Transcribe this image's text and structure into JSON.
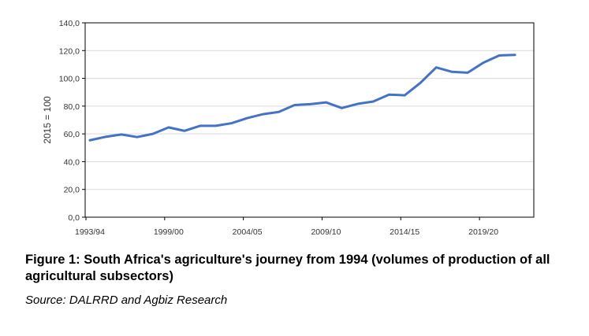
{
  "chart_data": {
    "type": "line",
    "title": "Figure 1: South Africa's agriculture's journey from 1994 (volumes of production of all agricultural subsectors)",
    "source": "Source: DALRRD and Agbiz Research",
    "xlabel": "",
    "ylabel": "2015 = 100",
    "ylim": [
      0,
      140
    ],
    "yticks": [
      "0,0",
      "20,0",
      "40,0",
      "60,0",
      "80,0",
      "100,0",
      "120,0",
      "140,0"
    ],
    "x_tick_labels": [
      "1993/94",
      "1999/00",
      "2004/05",
      "2009/10",
      "2014/15",
      "2019/20"
    ],
    "x_tick_every": 5,
    "grid": true,
    "color": "#4472C4",
    "series": [
      {
        "name": "Volume of production",
        "values": [
          55.4,
          57.9,
          59.6,
          57.7,
          60.0,
          64.7,
          62.2,
          65.8,
          65.8,
          67.7,
          71.4,
          74.2,
          75.8,
          80.8,
          81.4,
          82.7,
          78.6,
          81.6,
          83.3,
          88.3,
          87.8,
          96.8,
          107.9,
          104.7,
          104.1,
          111.3,
          116.5,
          116.9
        ]
      }
    ]
  }
}
